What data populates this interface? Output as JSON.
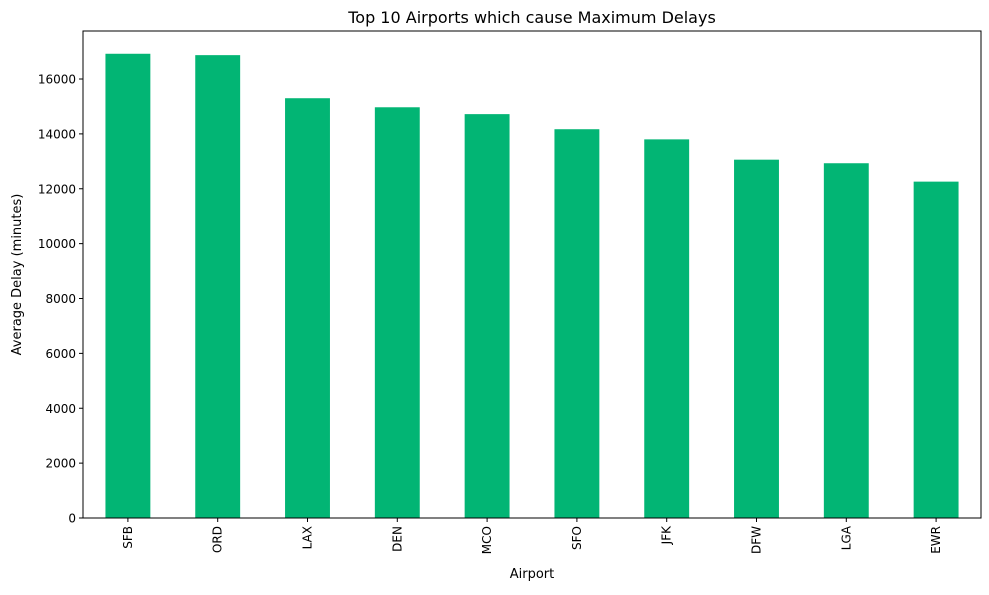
{
  "chart_data": {
    "type": "bar",
    "title": "Top 10 Airports which cause Maximum Delays",
    "xlabel": "Airport",
    "ylabel": "Average Delay (minutes)",
    "categories": [
      "SFB",
      "ORD",
      "LAX",
      "DEN",
      "MCO",
      "SFO",
      "JFK",
      "DFW",
      "LGA",
      "EWR"
    ],
    "values": [
      16920,
      16870,
      15300,
      14970,
      14720,
      14170,
      13800,
      13060,
      12930,
      12260
    ],
    "ylim": [
      0,
      17750
    ],
    "yticks": [
      0,
      2000,
      4000,
      6000,
      8000,
      10000,
      12000,
      14000,
      16000
    ],
    "bar_color": "#02b574",
    "grid": false,
    "legend": "none"
  }
}
